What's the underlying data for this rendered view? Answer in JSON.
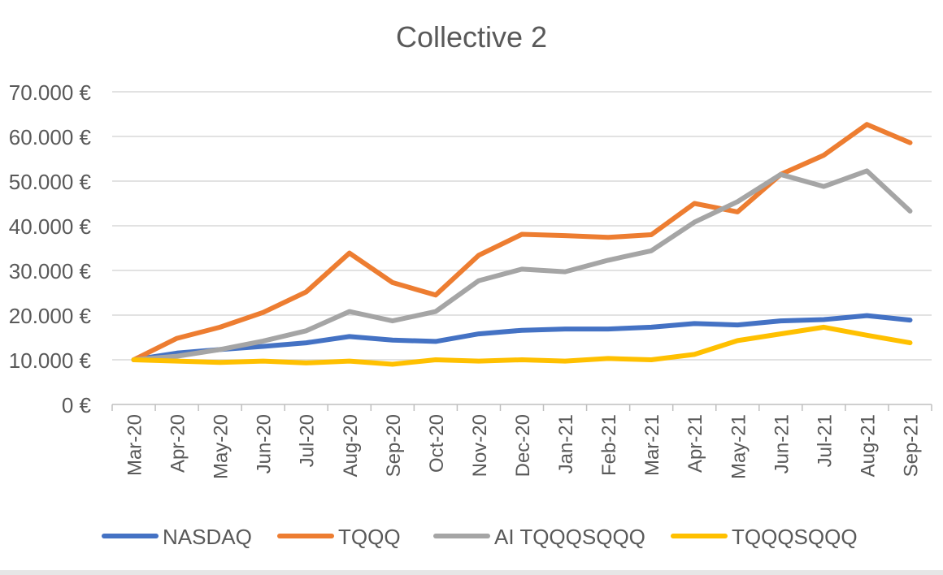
{
  "chart_data": {
    "type": "line",
    "title": "Collective 2",
    "xlabel": "",
    "ylabel": "",
    "categories": [
      "Mar-20",
      "Apr-20",
      "May-20",
      "Jun-20",
      "Jul-20",
      "Aug-20",
      "Sep-20",
      "Oct-20",
      "Nov-20",
      "Dec-20",
      "Jan-21",
      "Feb-21",
      "Mar-21",
      "Apr-21",
      "May-21",
      "Jun-21",
      "Jul-21",
      "Aug-21",
      "Sep-21"
    ],
    "yticks": [
      0,
      10000,
      20000,
      30000,
      40000,
      50000,
      60000,
      70000
    ],
    "ytick_labels": [
      "0 €",
      "10.000 €",
      "20.000 €",
      "30.000 €",
      "40.000 €",
      "50.000 €",
      "60.000 €",
      "70.000 €"
    ],
    "ylim": [
      0,
      70000
    ],
    "grid": true,
    "legend_position": "bottom",
    "series": [
      {
        "name": "NASDAQ",
        "color": "#4472c4",
        "values": [
          10000,
          11500,
          12300,
          13000,
          13800,
          15200,
          14400,
          14100,
          15800,
          16600,
          16900,
          16900,
          17300,
          18100,
          17800,
          18700,
          19000,
          19900,
          18900
        ]
      },
      {
        "name": "TQQQ",
        "color": "#ed7d31",
        "values": [
          10000,
          14800,
          17300,
          20600,
          25200,
          33900,
          27300,
          24500,
          33400,
          38100,
          37800,
          37400,
          38000,
          45000,
          43100,
          51500,
          55800,
          62700,
          58600
        ]
      },
      {
        "name": "AI TQQQSQQQ",
        "color": "#a5a5a5",
        "values": [
          10000,
          10800,
          12300,
          14200,
          16500,
          20800,
          18700,
          20800,
          27700,
          30300,
          29700,
          32300,
          34400,
          40800,
          45400,
          51500,
          48800,
          52300,
          43300
        ]
      },
      {
        "name": "TQQQSQQQ",
        "color": "#ffc000",
        "values": [
          10000,
          9700,
          9400,
          9700,
          9300,
          9700,
          9000,
          10000,
          9700,
          10000,
          9700,
          10300,
          10000,
          11200,
          14300,
          15800,
          17300,
          15500,
          13800
        ]
      }
    ]
  }
}
